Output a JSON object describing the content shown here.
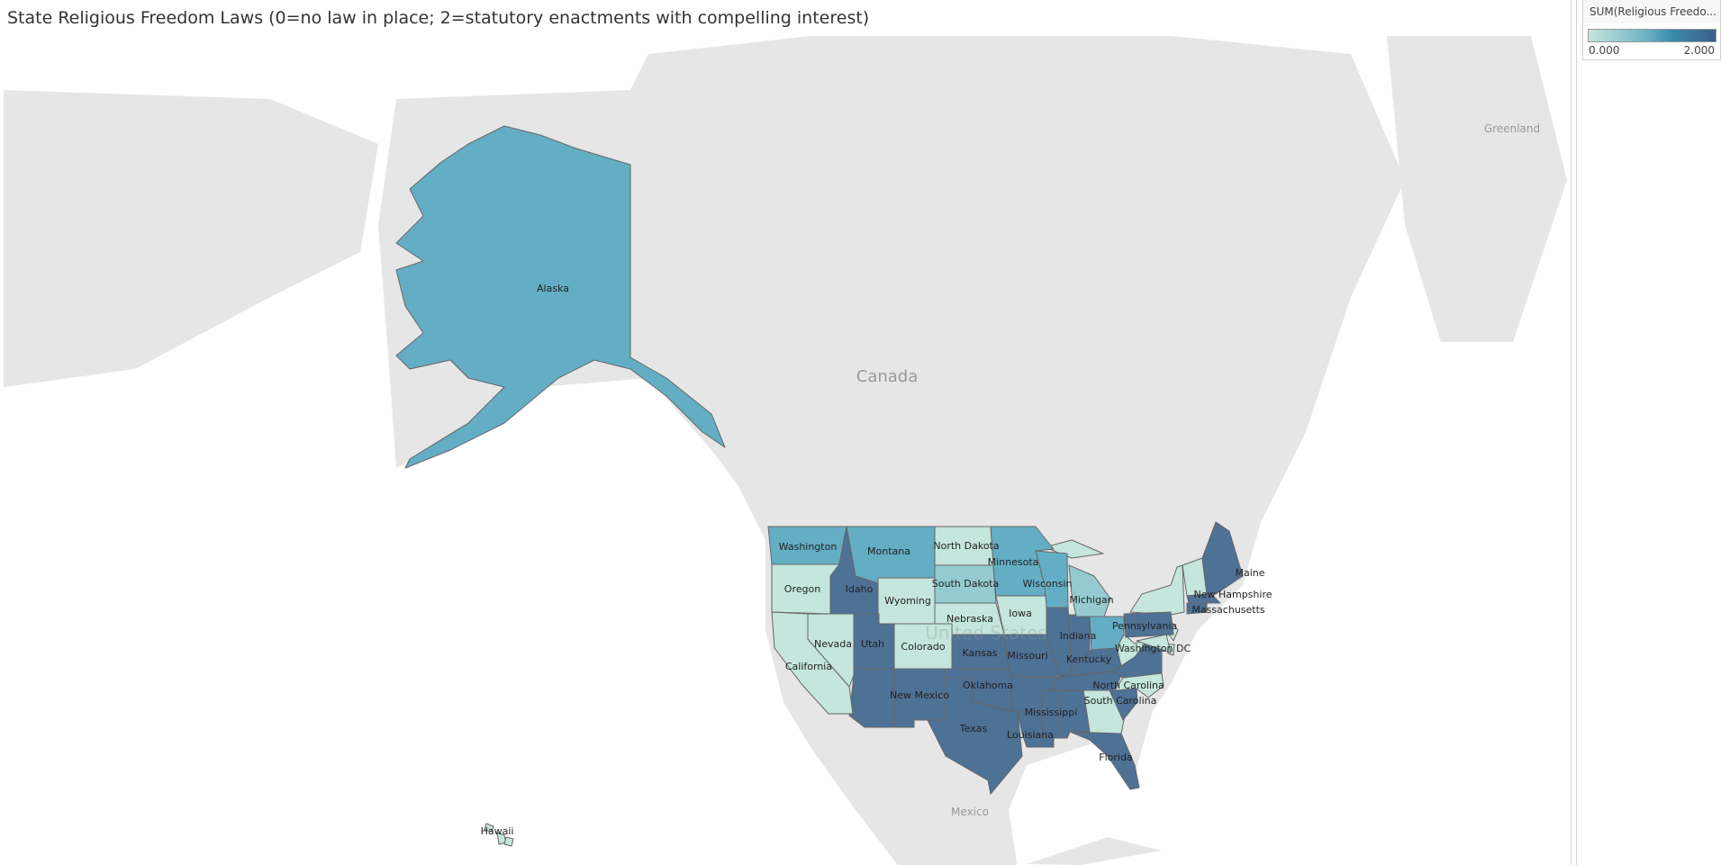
{
  "title": "State Religious Freedom Laws (0=no law in place; 2=statutory enactments with compelling interest)",
  "legend": {
    "title": "SUM(Religious Freedo...",
    "min_label": "0.000",
    "max_label": "2.000",
    "min": 0,
    "max": 2,
    "colors": {
      "low": "#c4e6dc",
      "mid": "#63aec4",
      "high": "#4e7196"
    }
  },
  "map_colors": {
    "land": "#e6e6e6",
    "water": "#ffffff",
    "border": "#666666"
  },
  "geo_labels": {
    "canada": "Canada",
    "mexico": "Mexico",
    "greenland": "Greenland",
    "united_states": "United States"
  },
  "states": [
    {
      "name": "Alaska",
      "value": 1
    },
    {
      "name": "Hawaii",
      "value": 0
    },
    {
      "name": "Washington",
      "value": 1
    },
    {
      "name": "Oregon",
      "value": 0
    },
    {
      "name": "California",
      "value": 0
    },
    {
      "name": "Nevada",
      "value": 0
    },
    {
      "name": "Idaho",
      "value": 2
    },
    {
      "name": "Montana",
      "value": 1
    },
    {
      "name": "Wyoming",
      "value": 0
    },
    {
      "name": "Utah",
      "value": 2
    },
    {
      "name": "Colorado",
      "value": 0
    },
    {
      "name": "New Mexico",
      "value": 2
    },
    {
      "name": "North Dakota",
      "value": 0
    },
    {
      "name": "South Dakota",
      "value": 0.5
    },
    {
      "name": "Nebraska",
      "value": 0
    },
    {
      "name": "Kansas",
      "value": 2
    },
    {
      "name": "Oklahoma",
      "value": 2
    },
    {
      "name": "Texas",
      "value": 2
    },
    {
      "name": "Minnesota",
      "value": 1
    },
    {
      "name": "Iowa",
      "value": 0
    },
    {
      "name": "Missouri",
      "value": 2
    },
    {
      "name": "Wisconsin",
      "value": 1
    },
    {
      "name": "Indiana",
      "value": 2
    },
    {
      "name": "Michigan",
      "value": 0.5
    },
    {
      "name": "Kentucky",
      "value": 2
    },
    {
      "name": "Louisiana",
      "value": 2
    },
    {
      "name": "Mississippi",
      "value": 2
    },
    {
      "name": "Florida",
      "value": 2
    },
    {
      "name": "South Carolina",
      "value": 2
    },
    {
      "name": "North Carolina",
      "value": 0
    },
    {
      "name": "Pennsylvania",
      "value": 2
    },
    {
      "name": "Washington DC",
      "value": 0
    },
    {
      "name": "New Hampshire",
      "value": 0
    },
    {
      "name": "Massachusetts",
      "value": 2
    },
    {
      "name": "Maine",
      "value": 2
    }
  ],
  "unlabeled_values": [
    2,
    2,
    2,
    2,
    2,
    1,
    0,
    2,
    0,
    0,
    0,
    0,
    0,
    2,
    0
  ]
}
